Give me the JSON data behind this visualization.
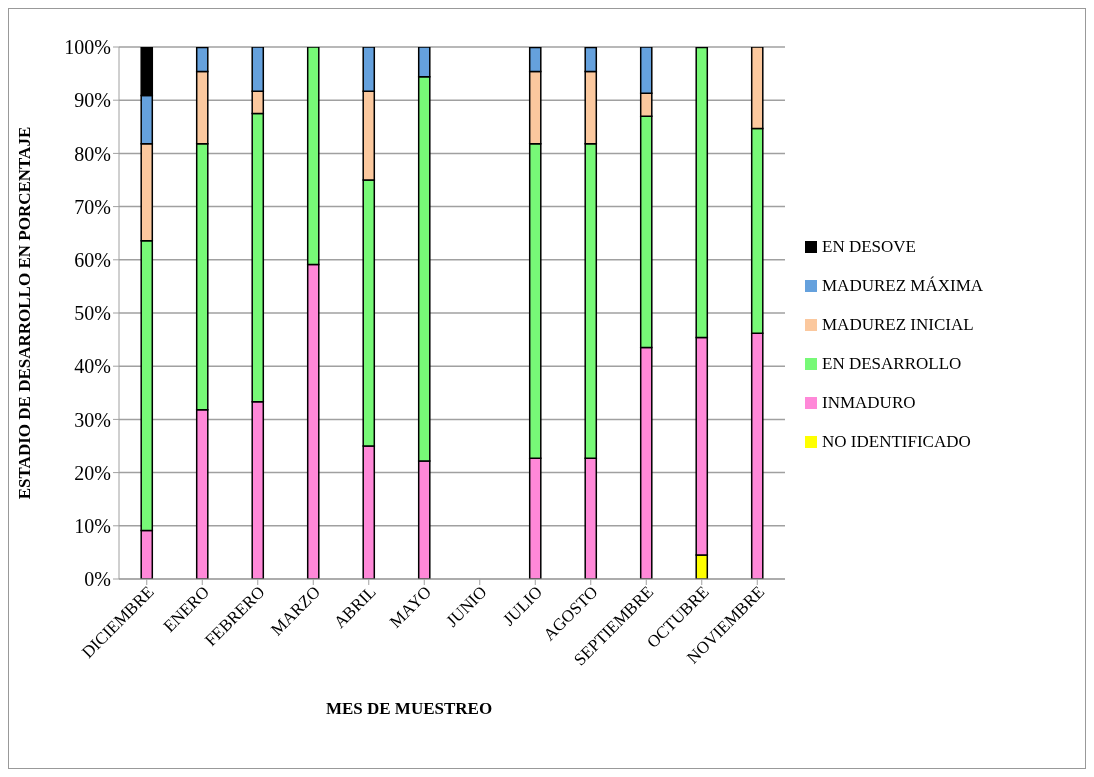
{
  "chart_data": {
    "type": "bar",
    "stacked": true,
    "xlabel": "MES DE MUESTREO",
    "ylabel": "ESTADIO DE DESARROLLO EN PORCENTAJE",
    "categories": [
      "DICIEMBRE",
      "ENERO",
      "FEBRERO",
      "MARZO",
      "ABRIL",
      "MAYO",
      "JUNIO",
      "JULIO",
      "AGOSTO",
      "SEPTIEMBRE",
      "OCTUBRE",
      "NOVIEMBRE"
    ],
    "series": [
      {
        "name": "NO IDENTIFICADO",
        "color": "#ffff00",
        "values": [
          null,
          null,
          null,
          null,
          null,
          null,
          null,
          null,
          null,
          null,
          4.5,
          null
        ]
      },
      {
        "name": "INMADURO",
        "color": "#ff88d8",
        "values": [
          9.1,
          31.8,
          33.3,
          59.1,
          25,
          22.2,
          null,
          22.7,
          22.7,
          43.5,
          40.9,
          46.2
        ]
      },
      {
        "name": "EN DESARROLLO",
        "color": "#77f977",
        "values": [
          54.5,
          50,
          54.2,
          40.9,
          50,
          72.2,
          null,
          59.1,
          59.1,
          43.5,
          54.5,
          38.5
        ]
      },
      {
        "name": "MADUREZ INICIAL",
        "color": "#fbc89e",
        "values": [
          18.2,
          13.6,
          4.2,
          null,
          16.7,
          null,
          null,
          13.6,
          13.6,
          4.3,
          null,
          15.4
        ]
      },
      {
        "name": "MADUREZ MÁXIMA",
        "color": "#65a1dd",
        "values": [
          9.1,
          4.5,
          8.3,
          null,
          8.3,
          5.6,
          null,
          4.5,
          4.5,
          8.7,
          null,
          null
        ]
      },
      {
        "name": "EN DESOVE",
        "color": "#000000",
        "values": [
          9.1,
          null,
          null,
          null,
          null,
          null,
          null,
          null,
          null,
          null,
          null,
          null
        ]
      }
    ],
    "ylim": [
      0,
      100
    ],
    "yticks": [
      {
        "value": 0,
        "label": "0%"
      },
      {
        "value": 10,
        "label": "10%"
      },
      {
        "value": 20,
        "label": "20%"
      },
      {
        "value": 30,
        "label": "30%"
      },
      {
        "value": 40,
        "label": "40%"
      },
      {
        "value": 50,
        "label": "50%"
      },
      {
        "value": 60,
        "label": "60%"
      },
      {
        "value": 70,
        "label": "70%"
      },
      {
        "value": 80,
        "label": "80%"
      },
      {
        "value": 90,
        "label": "90%"
      },
      {
        "value": 100,
        "label": "100%"
      }
    ],
    "grid": "y",
    "legend": "right"
  }
}
